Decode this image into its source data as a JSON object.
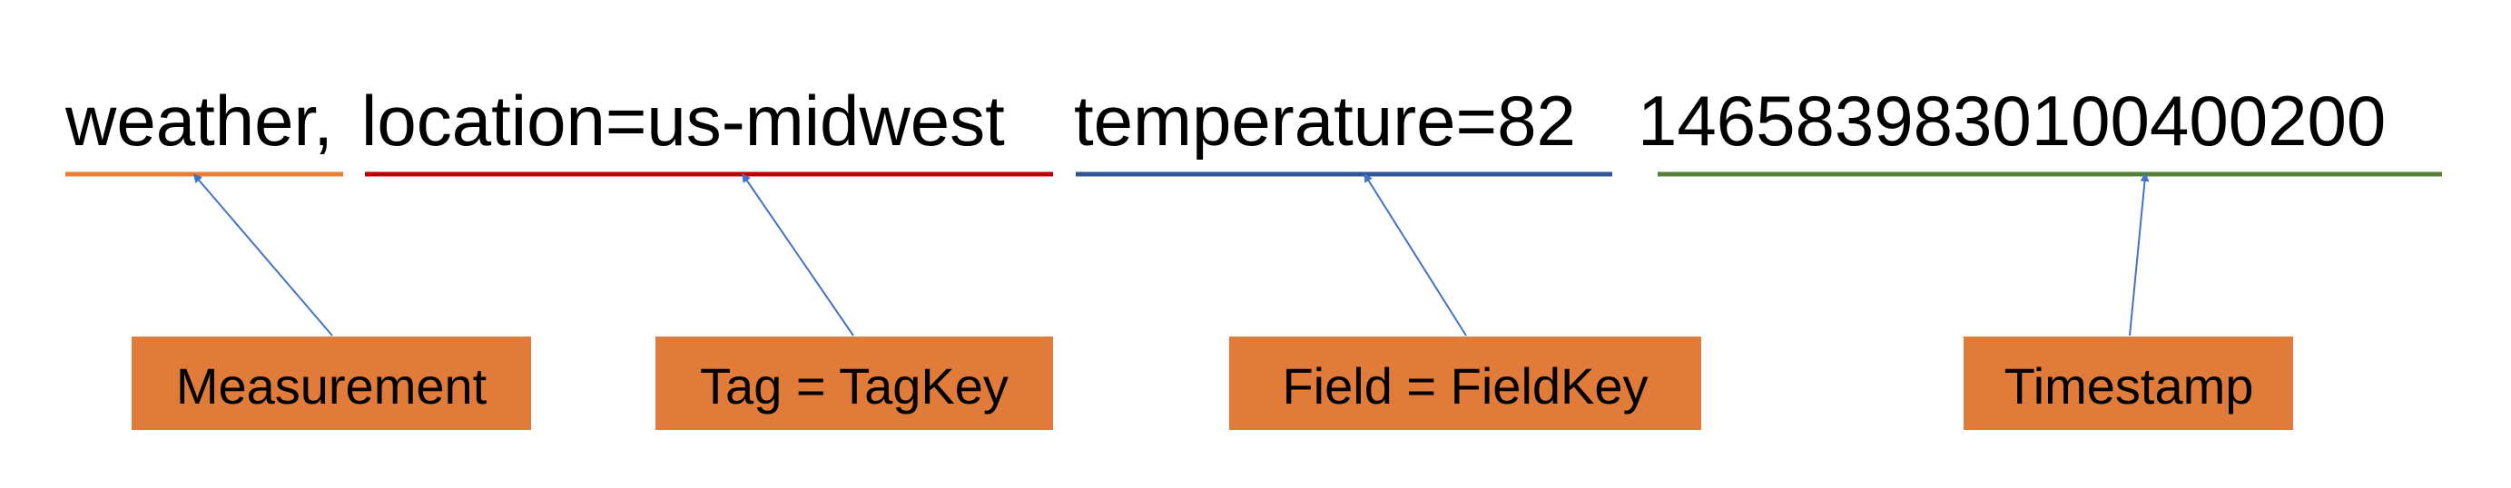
{
  "line_protocol": {
    "measurement": "weather,",
    "tag": "location=us-midwest",
    "field": "temperature=82",
    "timestamp": "1465839830100400200"
  },
  "labels": {
    "measurement": "Measurement",
    "tag": "Tag = TagKey",
    "field": "Field = FieldKey",
    "timestamp": "Timestamp"
  },
  "colors": {
    "measurement_underline": "#ED7D31",
    "tag_underline": "#C00000",
    "field_underline": "#2F5597",
    "timestamp_underline": "#548235",
    "label_box": "#E07B39",
    "arrow": "#4472C4"
  }
}
